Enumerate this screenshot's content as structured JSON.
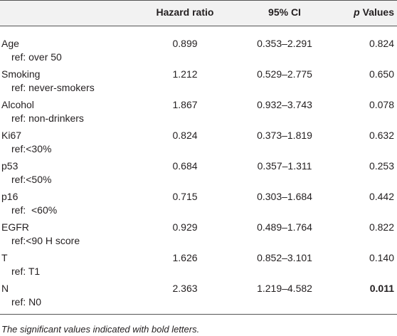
{
  "table": {
    "header": {
      "hazard_ratio": "Hazard ratio",
      "ci": "95% CI",
      "p_italic": "p",
      "p_rest": "Values"
    },
    "rows": [
      {
        "variable": "Age",
        "reference": "ref: over 50",
        "hazard_ratio": "0.899",
        "ci": "0.353–2.291",
        "p_value": "0.824",
        "significant": false
      },
      {
        "variable": "Smoking",
        "reference": "ref: never-smokers",
        "hazard_ratio": "1.212",
        "ci": "0.529–2.775",
        "p_value": "0.650",
        "significant": false
      },
      {
        "variable": "Alcohol",
        "reference": "ref: non-drinkers",
        "hazard_ratio": "1.867",
        "ci": "0.932–3.743",
        "p_value": "0.078",
        "significant": false
      },
      {
        "variable": "Ki67",
        "reference": "ref:<30%",
        "hazard_ratio": "0.824",
        "ci": "0.373–1.819",
        "p_value": "0.632",
        "significant": false
      },
      {
        "variable": "p53",
        "reference": "ref:<50%",
        "hazard_ratio": "0.684",
        "ci": "0.357–1.311",
        "p_value": "0.253",
        "significant": false
      },
      {
        "variable": "p16",
        "reference": "ref:  <60%",
        "hazard_ratio": "0.715",
        "ci": "0.303–1.684",
        "p_value": "0.442",
        "significant": false
      },
      {
        "variable": "EGFR",
        "reference": "ref:<90 H score",
        "hazard_ratio": "0.929",
        "ci": "0.489–1.764",
        "p_value": "0.822",
        "significant": false
      },
      {
        "variable": "T",
        "reference": "ref: T1",
        "hazard_ratio": "1.626",
        "ci": "0.852–3.101",
        "p_value": "0.140",
        "significant": false
      },
      {
        "variable": "N",
        "reference": "ref: N0",
        "hazard_ratio": "2.363",
        "ci": "1.219–4.582",
        "p_value": "0.011",
        "significant": true
      }
    ],
    "footnote": "The significant values indicated with bold letters."
  }
}
